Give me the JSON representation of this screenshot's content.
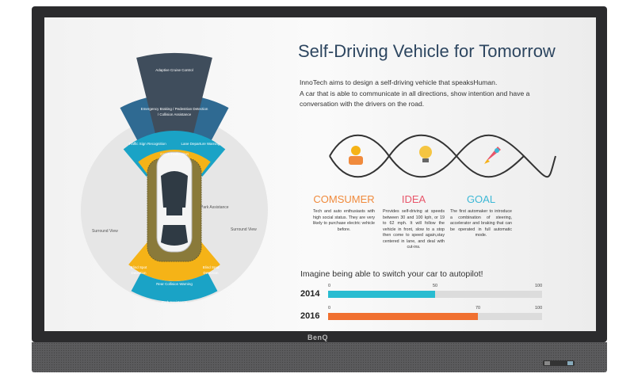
{
  "device": {
    "brand": "BenQ"
  },
  "diagram": {
    "adaptive_cruise": "Adaptive Cruise Control",
    "emergency_1": "Emergency Braking / Pedestrian Detection",
    "emergency_2": "/ Collision Assistance",
    "traffic_sign": "Traffic Sign Recognition",
    "lane_departure": "Lane Departure Warning",
    "cross_traffic": "Cross Traffic Alert",
    "park_assist_side": "Park Assistance",
    "surround_left": "Surround View",
    "surround_right": "Surround View",
    "blind_spot_left_1": "Blind Spot",
    "blind_spot_left_2": "Detection",
    "blind_spot_right_1": "Blind Spot",
    "blind_spot_right_2": "Detection",
    "rear_collision": "Rear Collision Warning",
    "park_assist_rear": "Park Assistance",
    "colors": {
      "dark": "#3f4d5c",
      "blue": "#2f6a92",
      "cyan": "#1aa3c6",
      "yellow": "#f5b317",
      "olive": "#8a7a3a"
    }
  },
  "slide": {
    "title": "Self-Driving Vehicle for Tomorrow",
    "intro_1": "InnoTech aims to design a self-driving vehicle that speaksHuman.",
    "intro_2": "A car that is able to communicate in all directions, show intention and have a conversation with the drivers on the road.",
    "columns": [
      {
        "heading": "COMSUMER",
        "color": "#f08a3c",
        "icon": "person-icon",
        "text": "Tech and auto enthusiasts with high social status. They are very likely to purchase electric vehicle before."
      },
      {
        "heading": "IDEA",
        "color": "#e8566a",
        "icon": "lightbulb-icon",
        "text": "Provides self-driving at speeds between 30 and 100 kph, or 19 to 62 mph. It will follow the vehicle in front, slow to a stop then come to speed again,stay centered in lane, and deal with cut-ins."
      },
      {
        "heading": "GOAL",
        "color": "#3db8d6",
        "icon": "rocket-icon",
        "text": "The first automaker to introduce a combination of steering, accelerator and braking that can be operated in full automatic mode."
      }
    ],
    "question": "Imagine being able to switch your car to autopilot!",
    "bars": [
      {
        "year": "2014",
        "min": "0",
        "value": 50,
        "value_label": "50",
        "max": "100",
        "color": "#29bcd1"
      },
      {
        "year": "2016",
        "min": "0",
        "value": 70,
        "value_label": "70",
        "max": "100",
        "color": "#f07030"
      }
    ]
  }
}
